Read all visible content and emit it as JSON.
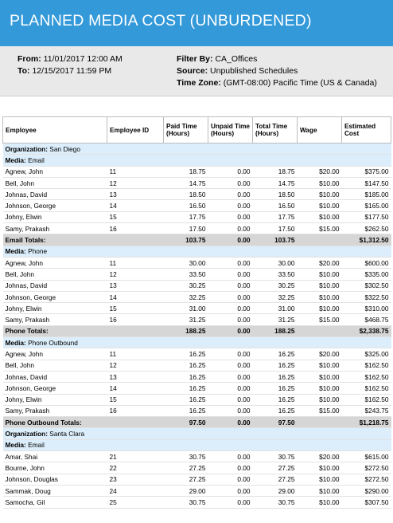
{
  "report": {
    "title": "PLANNED MEDIA COST (UNBURDENED)",
    "from_label": "From:",
    "from_value": "11/01/2017 12:00 AM",
    "to_label": "To:",
    "to_value": "12/15/2017 11:59 PM",
    "filter_label": "Filter By:",
    "filter_value": "CA_Offices",
    "source_label": "Source:",
    "source_value": "Unpublished Schedules",
    "timezone_label": "Time Zone:",
    "timezone_value": "(GMT-08:00) Pacific Time (US & Canada)"
  },
  "table": {
    "headers": [
      "Employee",
      "Employee ID",
      "Paid Time (Hours)",
      "Unpaid Time (Hours)",
      "Total Time (Hours)",
      "Wage",
      "Estimated Cost"
    ],
    "org_label": "Organization:",
    "media_label": "Media:",
    "rows": [
      {
        "type": "org",
        "value": "San Diego"
      },
      {
        "type": "media",
        "value": "Email"
      },
      {
        "type": "data",
        "cells": [
          "Agnew, John",
          "11",
          "18.75",
          "0.00",
          "18.75",
          "$20.00",
          "$375.00"
        ]
      },
      {
        "type": "data",
        "cells": [
          "Bell, John",
          "12",
          "14.75",
          "0.00",
          "14.75",
          "$10.00",
          "$147.50"
        ]
      },
      {
        "type": "data",
        "cells": [
          "Johnas, David",
          "13",
          "18.50",
          "0.00",
          "18.50",
          "$10.00",
          "$185.00"
        ]
      },
      {
        "type": "data",
        "cells": [
          "Johnson, George",
          "14",
          "16.50",
          "0.00",
          "16.50",
          "$10.00",
          "$165.00"
        ]
      },
      {
        "type": "data",
        "cells": [
          "Johny, Elwin",
          "15",
          "17.75",
          "0.00",
          "17.75",
          "$10.00",
          "$177.50"
        ]
      },
      {
        "type": "data",
        "cells": [
          "Samy, Prakash",
          "16",
          "17.50",
          "0.00",
          "17.50",
          "$15.00",
          "$262.50"
        ]
      },
      {
        "type": "total",
        "cells": [
          "Email Totals:",
          "",
          "103.75",
          "0.00",
          "103.75",
          "",
          "$1,312.50"
        ]
      },
      {
        "type": "media",
        "value": "Phone"
      },
      {
        "type": "data",
        "cells": [
          "Agnew, John",
          "11",
          "30.00",
          "0.00",
          "30.00",
          "$20.00",
          "$600.00"
        ]
      },
      {
        "type": "data",
        "cells": [
          "Bell, John",
          "12",
          "33.50",
          "0.00",
          "33.50",
          "$10.00",
          "$335.00"
        ]
      },
      {
        "type": "data",
        "cells": [
          "Johnas, David",
          "13",
          "30.25",
          "0.00",
          "30.25",
          "$10.00",
          "$302.50"
        ]
      },
      {
        "type": "data",
        "cells": [
          "Johnson, George",
          "14",
          "32.25",
          "0.00",
          "32.25",
          "$10.00",
          "$322.50"
        ]
      },
      {
        "type": "data",
        "cells": [
          "Johny, Elwin",
          "15",
          "31.00",
          "0.00",
          "31.00",
          "$10.00",
          "$310.00"
        ]
      },
      {
        "type": "data",
        "cells": [
          "Samy, Prakash",
          "16",
          "31.25",
          "0.00",
          "31.25",
          "$15.00",
          "$468.75"
        ]
      },
      {
        "type": "total",
        "cells": [
          "Phone Totals:",
          "",
          "188.25",
          "0.00",
          "188.25",
          "",
          "$2,338.75"
        ]
      },
      {
        "type": "media",
        "value": "Phone Outbound"
      },
      {
        "type": "data",
        "cells": [
          "Agnew, John",
          "11",
          "16.25",
          "0.00",
          "16.25",
          "$20.00",
          "$325.00"
        ]
      },
      {
        "type": "data",
        "cells": [
          "Bell, John",
          "12",
          "16.25",
          "0.00",
          "16.25",
          "$10.00",
          "$162.50"
        ]
      },
      {
        "type": "data",
        "cells": [
          "Johnas, David",
          "13",
          "16.25",
          "0.00",
          "16.25",
          "$10.00",
          "$162.50"
        ]
      },
      {
        "type": "data",
        "cells": [
          "Johnson, George",
          "14",
          "16.25",
          "0.00",
          "16.25",
          "$10.00",
          "$162.50"
        ]
      },
      {
        "type": "data",
        "cells": [
          "Johny, Elwin",
          "15",
          "16.25",
          "0.00",
          "16.25",
          "$10.00",
          "$162.50"
        ]
      },
      {
        "type": "data",
        "cells": [
          "Samy, Prakash",
          "16",
          "16.25",
          "0.00",
          "16.25",
          "$15.00",
          "$243.75"
        ]
      },
      {
        "type": "total",
        "cells": [
          "Phone Outbound Totals:",
          "",
          "97.50",
          "0.00",
          "97.50",
          "",
          "$1,218.75"
        ]
      },
      {
        "type": "org",
        "value": "Santa Clara"
      },
      {
        "type": "media",
        "value": "Email"
      },
      {
        "type": "data",
        "cells": [
          "Amar, Shai",
          "21",
          "30.75",
          "0.00",
          "30.75",
          "$20.00",
          "$615.00"
        ]
      },
      {
        "type": "data",
        "cells": [
          "Bourne, John",
          "22",
          "27.25",
          "0.00",
          "27.25",
          "$10.00",
          "$272.50"
        ]
      },
      {
        "type": "data",
        "cells": [
          "Johnson, Douglas",
          "23",
          "27.25",
          "0.00",
          "27.25",
          "$10.00",
          "$272.50"
        ]
      },
      {
        "type": "data",
        "cells": [
          "Sammak, Doug",
          "24",
          "29.00",
          "0.00",
          "29.00",
          "$10.00",
          "$290.00"
        ]
      },
      {
        "type": "data",
        "cells": [
          "Samocha, Gil",
          "25",
          "30.75",
          "0.00",
          "30.75",
          "$10.00",
          "$307.50"
        ]
      }
    ]
  },
  "colors": {
    "banner": "#3399d9",
    "filter_panel": "#e9e9e9",
    "group_row": "#dceefb",
    "total_row": "#d6d6d6"
  }
}
